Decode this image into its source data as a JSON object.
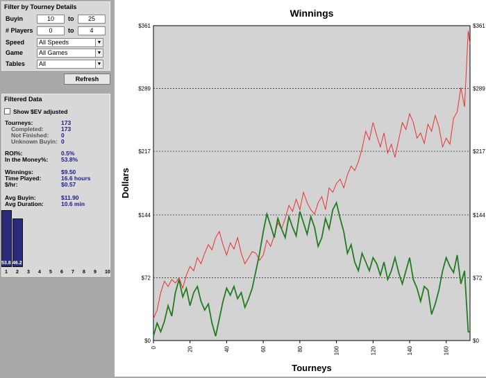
{
  "filter": {
    "title": "Filter by Tourney Details",
    "buyin": {
      "label": "Buyin",
      "min": "10",
      "to": "to",
      "max": "25"
    },
    "players": {
      "label": "# Players",
      "min": "0",
      "to": "to",
      "max": "4"
    },
    "speed": {
      "label": "Speed",
      "value": "All Speeds"
    },
    "game": {
      "label": "Game",
      "value": "All Games"
    },
    "tables": {
      "label": "Tables",
      "value": "All"
    },
    "refresh_label": "Refresh"
  },
  "filtered": {
    "title": "Filtered Data",
    "show_ev_label": "Show $EV adjusted",
    "tourneys": {
      "label": "Tourneys:",
      "value": "173"
    },
    "completed": {
      "label": "Completed:",
      "value": "173"
    },
    "not_finished": {
      "label": "Not Finished:",
      "value": "0"
    },
    "unknown_buyin": {
      "label": "Unknown Buyin:",
      "value": "0"
    },
    "roi": {
      "label": "ROI%:",
      "value": "0.5%"
    },
    "itm": {
      "label": "In the Money%:",
      "value": "53.8%"
    },
    "winnings": {
      "label": "Winnings:",
      "value": "$9.50"
    },
    "time_played": {
      "label": "Time Played:",
      "value": "16.6 hours"
    },
    "per_hr": {
      "label": "$/hr:",
      "value": "$0.57"
    },
    "avg_buyin": {
      "label": "Avg Buyin:",
      "value": "$11.90"
    },
    "avg_duration": {
      "label": "Avg Duration:",
      "value": "10.6 min"
    }
  },
  "mini_chart": {
    "bars": [
      {
        "x": "1",
        "value": 53.8,
        "label": "53.8"
      },
      {
        "x": "2",
        "value": 46.2,
        "label": "46.2"
      }
    ],
    "x_labels": [
      "1",
      "2",
      "3",
      "4",
      "5",
      "6",
      "7",
      "8",
      "9",
      "10"
    ]
  },
  "chart_data": {
    "type": "line",
    "title": "Winnings",
    "xlabel": "Tourneys",
    "ylabel": "Dollars",
    "xlim": [
      0,
      173
    ],
    "ylim": [
      0,
      361
    ],
    "x_ticks": [
      0,
      20,
      40,
      60,
      80,
      100,
      120,
      140,
      160
    ],
    "y_ticks": [
      {
        "v": 0,
        "label": "$0"
      },
      {
        "v": 72,
        "label": "$72"
      },
      {
        "v": 144,
        "label": "$144"
      },
      {
        "v": 217,
        "label": "$217"
      },
      {
        "v": 289,
        "label": "$289"
      },
      {
        "v": 361,
        "label": "$361"
      }
    ],
    "grid": true,
    "series": [
      {
        "color": "#e83030",
        "points": [
          [
            0,
            25
          ],
          [
            2,
            35
          ],
          [
            4,
            55
          ],
          [
            6,
            68
          ],
          [
            8,
            62
          ],
          [
            10,
            70
          ],
          [
            12,
            66
          ],
          [
            14,
            72
          ],
          [
            16,
            60
          ],
          [
            18,
            75
          ],
          [
            20,
            85
          ],
          [
            22,
            80
          ],
          [
            24,
            95
          ],
          [
            26,
            88
          ],
          [
            28,
            100
          ],
          [
            30,
            110
          ],
          [
            32,
            104
          ],
          [
            34,
            118
          ],
          [
            36,
            125
          ],
          [
            38,
            110
          ],
          [
            40,
            98
          ],
          [
            42,
            112
          ],
          [
            44,
            105
          ],
          [
            46,
            118
          ],
          [
            48,
            100
          ],
          [
            50,
            88
          ],
          [
            52,
            95
          ],
          [
            54,
            102
          ],
          [
            56,
            100
          ],
          [
            58,
            92
          ],
          [
            60,
            98
          ],
          [
            62,
            115
          ],
          [
            64,
            108
          ],
          [
            66,
            120
          ],
          [
            68,
            135
          ],
          [
            70,
            128
          ],
          [
            72,
            140
          ],
          [
            74,
            155
          ],
          [
            76,
            148
          ],
          [
            78,
            162
          ],
          [
            80,
            150
          ],
          [
            82,
            170
          ],
          [
            84,
            158
          ],
          [
            86,
            150
          ],
          [
            88,
            145
          ],
          [
            90,
            158
          ],
          [
            92,
            165
          ],
          [
            94,
            150
          ],
          [
            96,
            175
          ],
          [
            98,
            170
          ],
          [
            100,
            180
          ],
          [
            102,
            185
          ],
          [
            104,
            175
          ],
          [
            106,
            190
          ],
          [
            108,
            200
          ],
          [
            110,
            195
          ],
          [
            112,
            205
          ],
          [
            114,
            220
          ],
          [
            116,
            240
          ],
          [
            118,
            230
          ],
          [
            120,
            250
          ],
          [
            122,
            235
          ],
          [
            124,
            222
          ],
          [
            126,
            238
          ],
          [
            128,
            215
          ],
          [
            130,
            225
          ],
          [
            132,
            210
          ],
          [
            134,
            230
          ],
          [
            136,
            250
          ],
          [
            138,
            242
          ],
          [
            140,
            260
          ],
          [
            142,
            250
          ],
          [
            144,
            232
          ],
          [
            146,
            238
          ],
          [
            148,
            226
          ],
          [
            150,
            248
          ],
          [
            152,
            240
          ],
          [
            154,
            258
          ],
          [
            156,
            245
          ],
          [
            158,
            222
          ],
          [
            160,
            232
          ],
          [
            162,
            225
          ],
          [
            164,
            255
          ],
          [
            166,
            262
          ],
          [
            168,
            290
          ],
          [
            170,
            268
          ],
          [
            172,
            355
          ],
          [
            173,
            340
          ]
        ]
      },
      {
        "color": "#207a20",
        "points": [
          [
            0,
            5
          ],
          [
            2,
            20
          ],
          [
            4,
            10
          ],
          [
            6,
            22
          ],
          [
            8,
            40
          ],
          [
            10,
            28
          ],
          [
            12,
            55
          ],
          [
            14,
            70
          ],
          [
            16,
            50
          ],
          [
            18,
            60
          ],
          [
            20,
            40
          ],
          [
            22,
            55
          ],
          [
            24,
            62
          ],
          [
            26,
            45
          ],
          [
            28,
            35
          ],
          [
            30,
            42
          ],
          [
            32,
            20
          ],
          [
            34,
            5
          ],
          [
            36,
            25
          ],
          [
            38,
            45
          ],
          [
            40,
            60
          ],
          [
            42,
            52
          ],
          [
            44,
            62
          ],
          [
            46,
            48
          ],
          [
            48,
            55
          ],
          [
            50,
            38
          ],
          [
            52,
            48
          ],
          [
            54,
            60
          ],
          [
            56,
            80
          ],
          [
            58,
            100
          ],
          [
            60,
            125
          ],
          [
            62,
            145
          ],
          [
            64,
            132
          ],
          [
            66,
            118
          ],
          [
            68,
            140
          ],
          [
            70,
            128
          ],
          [
            72,
            118
          ],
          [
            74,
            142
          ],
          [
            76,
            130
          ],
          [
            78,
            120
          ],
          [
            80,
            148
          ],
          [
            82,
            135
          ],
          [
            84,
            122
          ],
          [
            86,
            142
          ],
          [
            88,
            130
          ],
          [
            90,
            108
          ],
          [
            92,
            118
          ],
          [
            94,
            140
          ],
          [
            96,
            128
          ],
          [
            98,
            150
          ],
          [
            100,
            158
          ],
          [
            102,
            140
          ],
          [
            104,
            125
          ],
          [
            106,
            100
          ],
          [
            108,
            110
          ],
          [
            110,
            90
          ],
          [
            112,
            80
          ],
          [
            114,
            100
          ],
          [
            116,
            90
          ],
          [
            118,
            80
          ],
          [
            120,
            95
          ],
          [
            122,
            88
          ],
          [
            124,
            75
          ],
          [
            126,
            90
          ],
          [
            128,
            70
          ],
          [
            130,
            80
          ],
          [
            132,
            95
          ],
          [
            134,
            78
          ],
          [
            136,
            65
          ],
          [
            138,
            80
          ],
          [
            140,
            95
          ],
          [
            142,
            70
          ],
          [
            144,
            60
          ],
          [
            146,
            45
          ],
          [
            148,
            62
          ],
          [
            150,
            58
          ],
          [
            152,
            30
          ],
          [
            154,
            42
          ],
          [
            156,
            58
          ],
          [
            158,
            80
          ],
          [
            160,
            95
          ],
          [
            162,
            85
          ],
          [
            164,
            78
          ],
          [
            166,
            98
          ],
          [
            168,
            65
          ],
          [
            170,
            80
          ],
          [
            172,
            10
          ],
          [
            173,
            10
          ]
        ]
      }
    ]
  }
}
